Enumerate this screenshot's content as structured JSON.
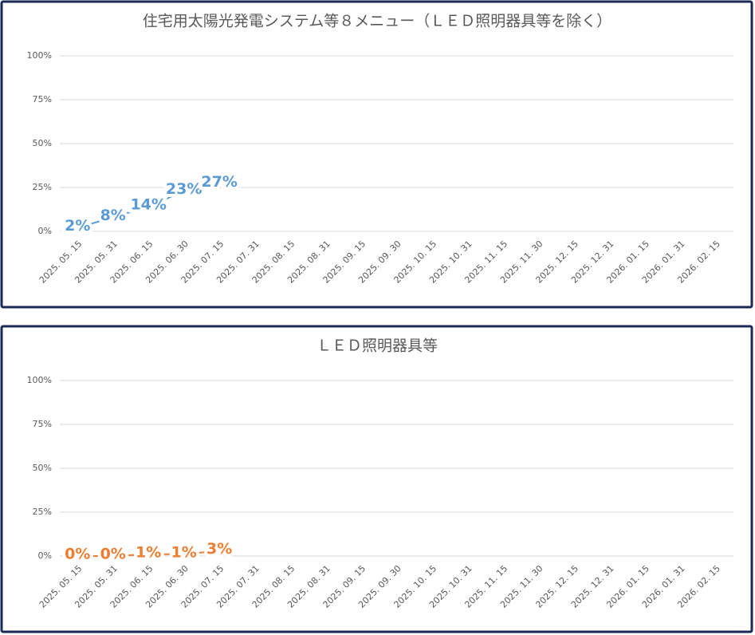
{
  "chart_data": [
    {
      "type": "line",
      "title": "住宅用太陽光発電システム等８メニュー（ＬＥＤ照明器具等を除く）",
      "categories": [
        "2025. 05. 15",
        "2025. 05. 31",
        "2025. 06. 15",
        "2025. 06. 30",
        "2025. 07. 15",
        "2025. 07. 31",
        "2025. 08. 15",
        "2025. 08. 31",
        "2025. 09. 15",
        "2025. 09. 30",
        "2025. 10. 15",
        "2025. 10. 31",
        "2025. 11. 15",
        "2025. 11. 30",
        "2025. 12. 15",
        "2025. 12. 31",
        "2026. 01. 15",
        "2026. 01. 31",
        "2026. 02. 15"
      ],
      "series": [
        {
          "name": null,
          "color": "#5b9bd5",
          "values": [
            2,
            8,
            14,
            23,
            27,
            null,
            null,
            null,
            null,
            null,
            null,
            null,
            null,
            null,
            null,
            null,
            null,
            null,
            null
          ],
          "value_labels": [
            "2%",
            "8%",
            "14%",
            "23%",
            "27%",
            null,
            null,
            null,
            null,
            null,
            null,
            null,
            null,
            null,
            null,
            null,
            null,
            null,
            null
          ]
        }
      ],
      "ylim": [
        0,
        100
      ],
      "yticks": [
        {
          "value": 0,
          "label": "0%"
        },
        {
          "value": 25,
          "label": "25%"
        },
        {
          "value": 50,
          "label": "50%"
        },
        {
          "value": 75,
          "label": "75%"
        },
        {
          "value": 100,
          "label": "100%"
        }
      ],
      "grid": true
    },
    {
      "type": "line",
      "title": "ＬＥＤ照明器具等",
      "categories": [
        "2025. 05. 15",
        "2025. 05. 31",
        "2025. 06. 15",
        "2025. 06. 30",
        "2025. 07. 15",
        "2025. 07. 31",
        "2025. 08. 15",
        "2025. 08. 31",
        "2025. 09. 15",
        "2025. 09. 30",
        "2025. 10. 15",
        "2025. 10. 31",
        "2025. 11. 15",
        "2025. 11. 30",
        "2025. 12. 15",
        "2025. 12. 31",
        "2026. 01. 15",
        "2026. 01. 31",
        "2026. 02. 15"
      ],
      "series": [
        {
          "name": null,
          "color": "#ed7d31",
          "values": [
            0,
            0,
            1,
            1,
            3,
            null,
            null,
            null,
            null,
            null,
            null,
            null,
            null,
            null,
            null,
            null,
            null,
            null,
            null
          ],
          "value_labels": [
            "0%",
            "0%",
            "1%",
            "1%",
            "3%",
            null,
            null,
            null,
            null,
            null,
            null,
            null,
            null,
            null,
            null,
            null,
            null,
            null,
            null
          ]
        }
      ],
      "ylim": [
        0,
        100
      ],
      "yticks": [
        {
          "value": 0,
          "label": "0%"
        },
        {
          "value": 25,
          "label": "25%"
        },
        {
          "value": 50,
          "label": "50%"
        },
        {
          "value": 75,
          "label": "75%"
        },
        {
          "value": 100,
          "label": "100%"
        }
      ],
      "grid": true
    }
  ]
}
